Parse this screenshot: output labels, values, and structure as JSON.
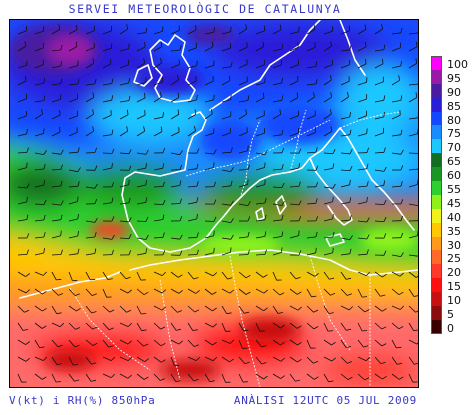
{
  "header": {
    "title": "SERVEI METEOROLÒGIC DE CATALUNYA"
  },
  "map": {
    "region": "Western Europe, Mediterranean and North Africa",
    "variables": [
      "wind barbs",
      "relative humidity shading"
    ],
    "level": "850hPa"
  },
  "footer": {
    "left": "V(kt) i RH(%) 850hPa",
    "right": "ANÀLISI 12UTC 05 JUL 2009"
  },
  "legend": {
    "entries": [
      {
        "label": "100",
        "color": "#ff00ff"
      },
      {
        "label": "95",
        "color": "#9a1aa8"
      },
      {
        "label": "90",
        "color": "#4a1ca0"
      },
      {
        "label": "85",
        "color": "#2a1ed8"
      },
      {
        "label": "80",
        "color": "#1448ff"
      },
      {
        "label": "75",
        "color": "#1a8cff"
      },
      {
        "label": "70",
        "color": "#1ec8ff"
      },
      {
        "label": "65",
        "color": "#126e20"
      },
      {
        "label": "60",
        "color": "#1a9624"
      },
      {
        "label": "55",
        "color": "#2ecf2e"
      },
      {
        "label": "45",
        "color": "#8ef21a"
      },
      {
        "label": "40",
        "color": "#f2f21a"
      },
      {
        "label": "35",
        "color": "#ffc800"
      },
      {
        "label": "30",
        "color": "#ff9a1a"
      },
      {
        "label": "25",
        "color": "#ff6a2a"
      },
      {
        "label": "20",
        "color": "#ff3a2a"
      },
      {
        "label": "15",
        "color": "#ff1010"
      },
      {
        "label": "10",
        "color": "#c81010"
      },
      {
        "label": "5",
        "color": "#8a0c0c"
      },
      {
        "label": "0",
        "color": "#3a0000"
      }
    ]
  }
}
